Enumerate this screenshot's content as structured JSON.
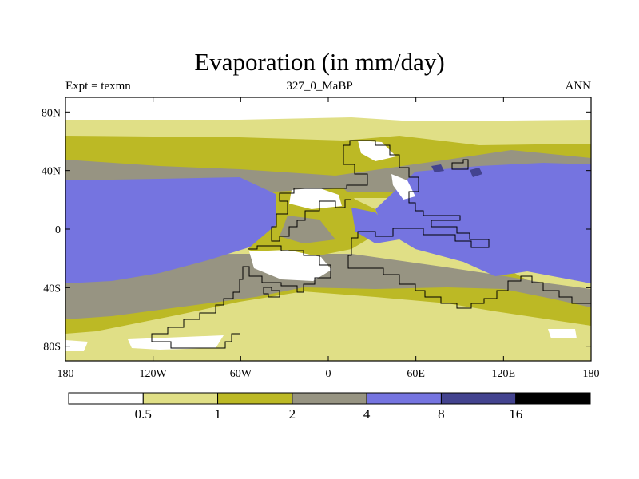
{
  "title": "Evaporation (in mm/day)",
  "subtitle_left": "Expt = texmn",
  "subtitle_center": "327_0_MaBP",
  "subtitle_right": "ANN",
  "chart_data": {
    "type": "heatmap",
    "variable": "Evaporation",
    "units": "mm/day",
    "xlim": [
      -180,
      180
    ],
    "ylim": [
      -90,
      90
    ],
    "x_ticks": [
      {
        "value": -180,
        "label": "180"
      },
      {
        "value": -120,
        "label": "120W"
      },
      {
        "value": -60,
        "label": "60W"
      },
      {
        "value": 0,
        "label": "0"
      },
      {
        "value": 60,
        "label": "60E"
      },
      {
        "value": 120,
        "label": "120E"
      },
      {
        "value": 180,
        "label": "180"
      }
    ],
    "y_ticks": [
      {
        "value": 80,
        "label": "80N"
      },
      {
        "value": 40,
        "label": "40N"
      },
      {
        "value": 0,
        "label": "0"
      },
      {
        "value": -40,
        "label": "40S"
      },
      {
        "value": -80,
        "label": "80S"
      }
    ],
    "colorbar": {
      "levels": [
        "0.5",
        "1",
        "2",
        "4",
        "8",
        "16"
      ],
      "colors": [
        "#ffffff",
        "#e0df86",
        "#bcb925",
        "#979482",
        "#7574e0",
        "#43438f",
        "#000000"
      ]
    },
    "legend_position": "bottom"
  }
}
